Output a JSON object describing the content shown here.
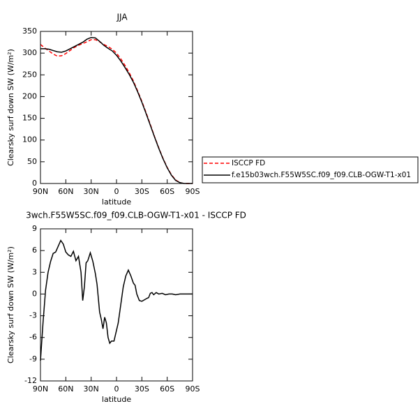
{
  "chart_data": [
    {
      "type": "line",
      "title": "JJA",
      "xlabel": "latitude",
      "ylabel": "Clearsky surf down SW (W/m²)",
      "x": [
        90,
        85,
        80,
        75,
        70,
        65,
        60,
        55,
        50,
        45,
        40,
        35,
        30,
        25,
        20,
        15,
        10,
        5,
        0,
        -5,
        -10,
        -15,
        -20,
        -25,
        -30,
        -35,
        -40,
        -45,
        -50,
        -55,
        -60,
        -65,
        -70,
        -75,
        -80,
        -85,
        -90
      ],
      "series": [
        {
          "name": "ISCCP FD",
          "color": "#ff0000",
          "dashed": true,
          "values": [
            320,
            312,
            305,
            298,
            293,
            294,
            299,
            306,
            313,
            318,
            322,
            326,
            331,
            331,
            326,
            320,
            315,
            309,
            300,
            287,
            272,
            255,
            236,
            213,
            189,
            163,
            136,
            108,
            82,
            58,
            37,
            20,
            8,
            2,
            0,
            0,
            0
          ]
        },
        {
          "name": "f.e15b03wch.F55W5SC.f09_f09.CLB-OGW-T1-x01",
          "color": "#000000",
          "dashed": false,
          "values": [
            310,
            310,
            309,
            306,
            303,
            302,
            305,
            310,
            315,
            320,
            325,
            332,
            336,
            335,
            327,
            318,
            311,
            305,
            295,
            282,
            267,
            251,
            233,
            211,
            187,
            161,
            134,
            107,
            81,
            57,
            36,
            19,
            7,
            2,
            0,
            0,
            0
          ]
        }
      ],
      "xlim": [
        90,
        -90
      ],
      "xticks": [
        {
          "value": 90,
          "label": "90N"
        },
        {
          "value": 60,
          "label": "60N"
        },
        {
          "value": 30,
          "label": "30N"
        },
        0,
        {
          "value": -30,
          "label": "30S"
        },
        {
          "value": -60,
          "label": "60S"
        },
        {
          "value": -90,
          "label": "90S"
        }
      ],
      "ylim": [
        0,
        350
      ],
      "yticks": [
        0,
        50,
        100,
        150,
        200,
        250,
        300,
        350
      ],
      "legend": "right"
    },
    {
      "type": "line",
      "title": "3wch.F55W5SC.f09_f09.CLB-OGW-T1-x01 - ISCCP FD",
      "xlabel": "latitude",
      "ylabel": "Clearsky surf down SW (W/m²)",
      "x": [
        90,
        87,
        84,
        81,
        78,
        75,
        72,
        69,
        66,
        63,
        60,
        57,
        54,
        51,
        48,
        45,
        42,
        40,
        38,
        36,
        34,
        31,
        28,
        25,
        23,
        20,
        18,
        16,
        14,
        12,
        10,
        8,
        6,
        3,
        1,
        -2,
        -5,
        -8,
        -11,
        -14,
        -17,
        -20,
        -22,
        -24,
        -27,
        -30,
        -33,
        -36,
        -38,
        -40,
        -42,
        -44,
        -47,
        -50,
        -54,
        -58,
        -62,
        -66,
        -70,
        -75,
        -80,
        -85,
        -90
      ],
      "series": [
        {
          "color": "#000000",
          "dashed": false,
          "values": [
            -9.2,
            -4,
            0.5,
            3,
            4.5,
            5.6,
            5.8,
            6.6,
            7.4,
            6.9,
            5.8,
            5.4,
            5.2,
            5.9,
            4.6,
            5.2,
            3,
            -0.9,
            1,
            4.3,
            4.6,
            5.7,
            4.5,
            2.8,
            1.3,
            -2.5,
            -3.5,
            -4.8,
            -3.2,
            -4,
            -6,
            -6.8,
            -6.5,
            -6.5,
            -5.5,
            -4,
            -1.5,
            1,
            2.5,
            3.3,
            2.5,
            1.5,
            1.2,
            0,
            -0.9,
            -1,
            -0.8,
            -0.6,
            -0.5,
            0.1,
            0.2,
            -0.1,
            0.2,
            0,
            0.1,
            -0.1,
            0,
            0,
            -0.1,
            0,
            0,
            0,
            0
          ]
        }
      ],
      "xlim": [
        90,
        -90
      ],
      "xticks": [
        {
          "value": 90,
          "label": "90N"
        },
        {
          "value": 60,
          "label": "60N"
        },
        {
          "value": 30,
          "label": "30N"
        },
        0,
        {
          "value": -30,
          "label": "30S"
        },
        {
          "value": -60,
          "label": "60S"
        },
        {
          "value": -90,
          "label": "90S"
        }
      ],
      "ylim": [
        -12,
        9
      ],
      "yticks": [
        -12,
        -9,
        -6,
        -3,
        0,
        3,
        6,
        9
      ]
    }
  ]
}
